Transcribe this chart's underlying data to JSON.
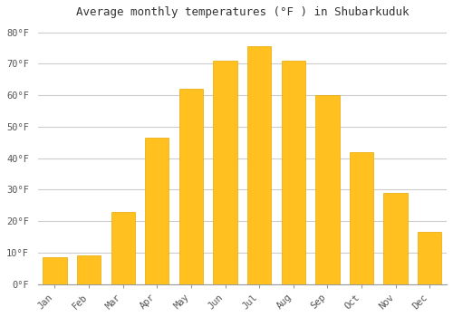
{
  "title": "Average monthly temperatures (°F ) in Shubarkuduk",
  "months": [
    "Jan",
    "Feb",
    "Mar",
    "Apr",
    "May",
    "Jun",
    "Jul",
    "Aug",
    "Sep",
    "Oct",
    "Nov",
    "Dec"
  ],
  "values": [
    8.5,
    9.0,
    23.0,
    46.5,
    62.0,
    71.0,
    75.5,
    71.0,
    60.0,
    42.0,
    29.0,
    16.5
  ],
  "bar_color": "#FFC020",
  "bar_edge_color": "#E8A800",
  "ylim": [
    0,
    83
  ],
  "yticks": [
    0,
    10,
    20,
    30,
    40,
    50,
    60,
    70,
    80
  ],
  "ytick_labels": [
    "0°F",
    "10°F",
    "20°F",
    "30°F",
    "40°F",
    "50°F",
    "60°F",
    "70°F",
    "80°F"
  ],
  "background_color": "#FFFFFF",
  "grid_color": "#CCCCCC",
  "title_fontsize": 9,
  "tick_fontsize": 7.5,
  "font_family": "monospace",
  "bar_width": 0.7
}
